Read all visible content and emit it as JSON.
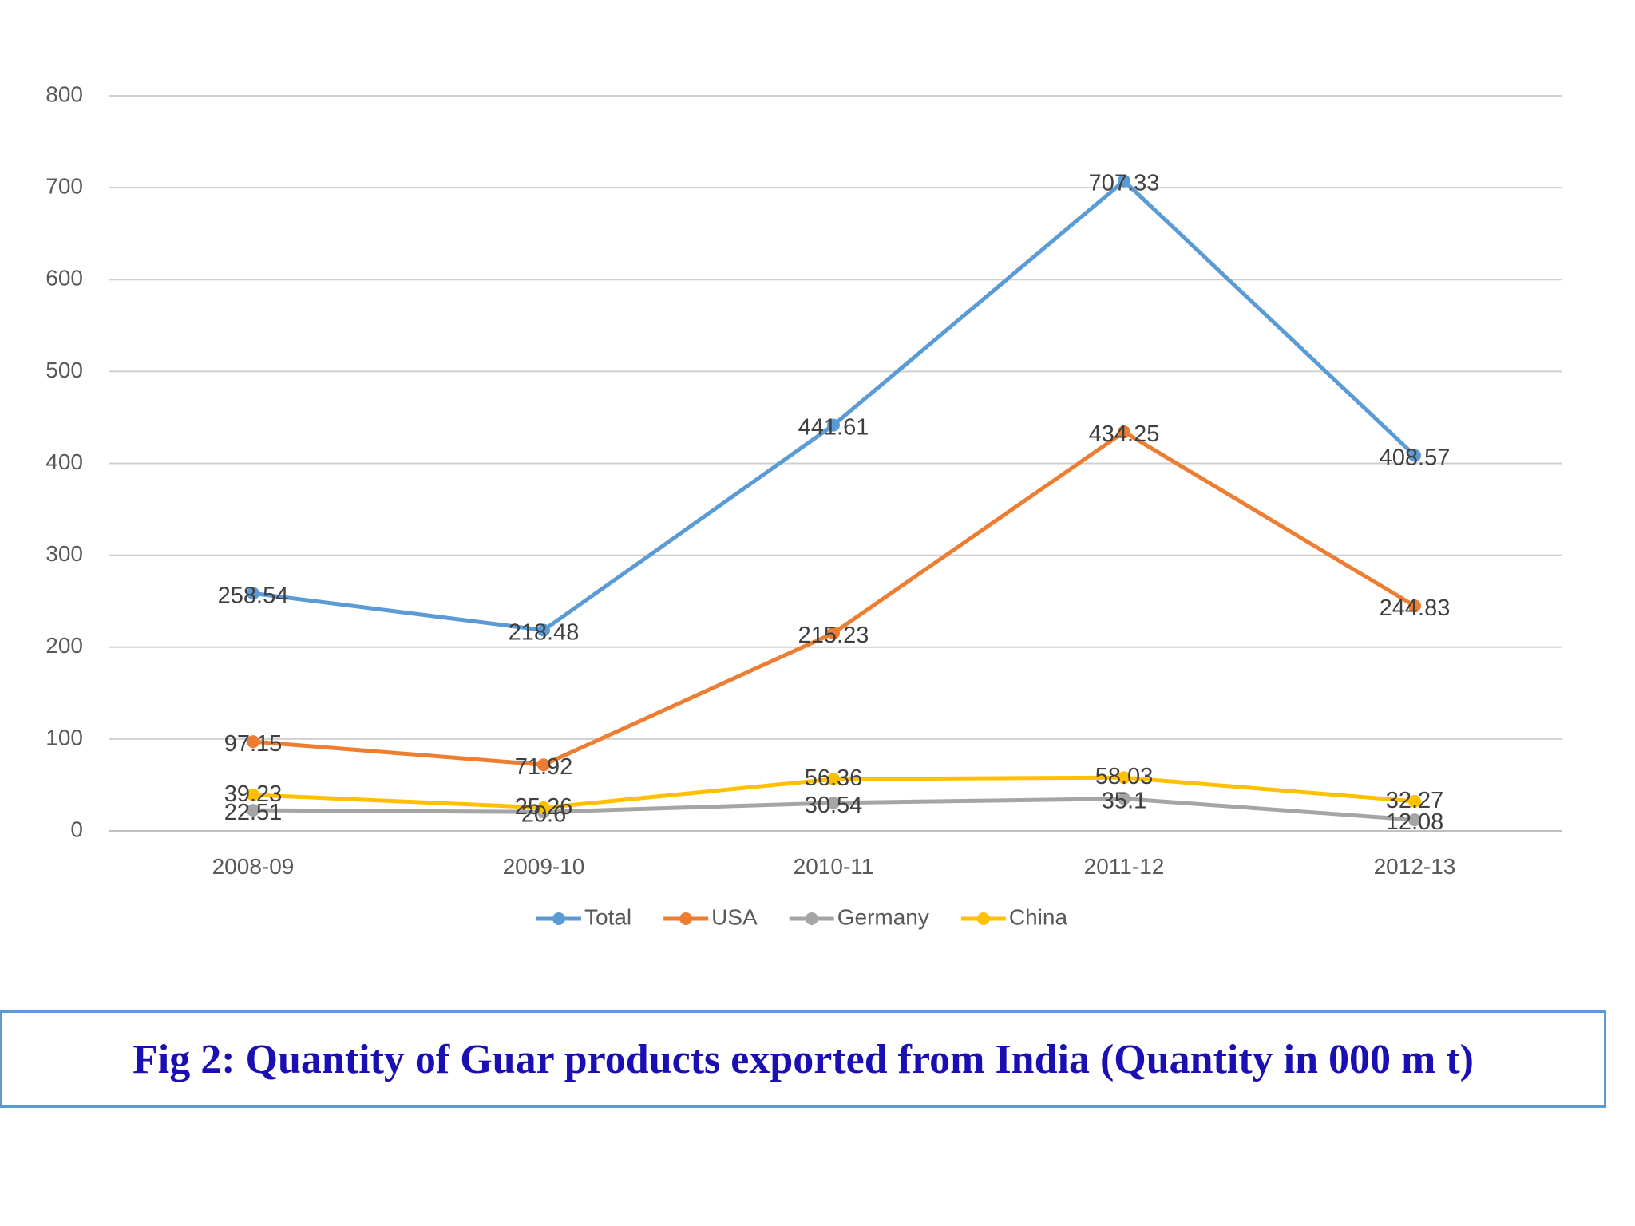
{
  "caption": "Fig 2: Quantity of Guar products exported from India (Quantity in 000 m t)",
  "chart_data": {
    "type": "line",
    "categories": [
      "2008-09",
      "2009-10",
      "2010-11",
      "2011-12",
      "2012-13"
    ],
    "ylim": [
      0,
      800
    ],
    "yticks": [
      "0",
      "100",
      "200",
      "300",
      "400",
      "500",
      "600",
      "700",
      "800"
    ],
    "grid": true,
    "legend_position": "bottom",
    "series": [
      {
        "name": "Total",
        "color": "#5b9bd5",
        "values": [
          258.54,
          218.48,
          441.61,
          707.33,
          408.57
        ],
        "labels": [
          "258.54",
          "218.48",
          "441.61",
          "707.33",
          "408.57"
        ]
      },
      {
        "name": "USA",
        "color": "#ed7d31",
        "values": [
          97.15,
          71.92,
          215.23,
          434.25,
          244.83
        ],
        "labels": [
          "97.15",
          "71.92",
          "215.23",
          "434.25",
          "244.83"
        ]
      },
      {
        "name": "Germany",
        "color": "#a5a5a5",
        "values": [
          22.51,
          20.6,
          30.54,
          35.1,
          12.08
        ],
        "labels": [
          "22.51",
          "20.6",
          "30.54",
          "35.1",
          "12.08"
        ]
      },
      {
        "name": "China",
        "color": "#ffc000",
        "values": [
          39.23,
          25.26,
          56.36,
          58.03,
          32.27
        ],
        "labels": [
          "39.23",
          "25.26",
          "56.36",
          "58.03",
          "32.27"
        ]
      }
    ]
  }
}
